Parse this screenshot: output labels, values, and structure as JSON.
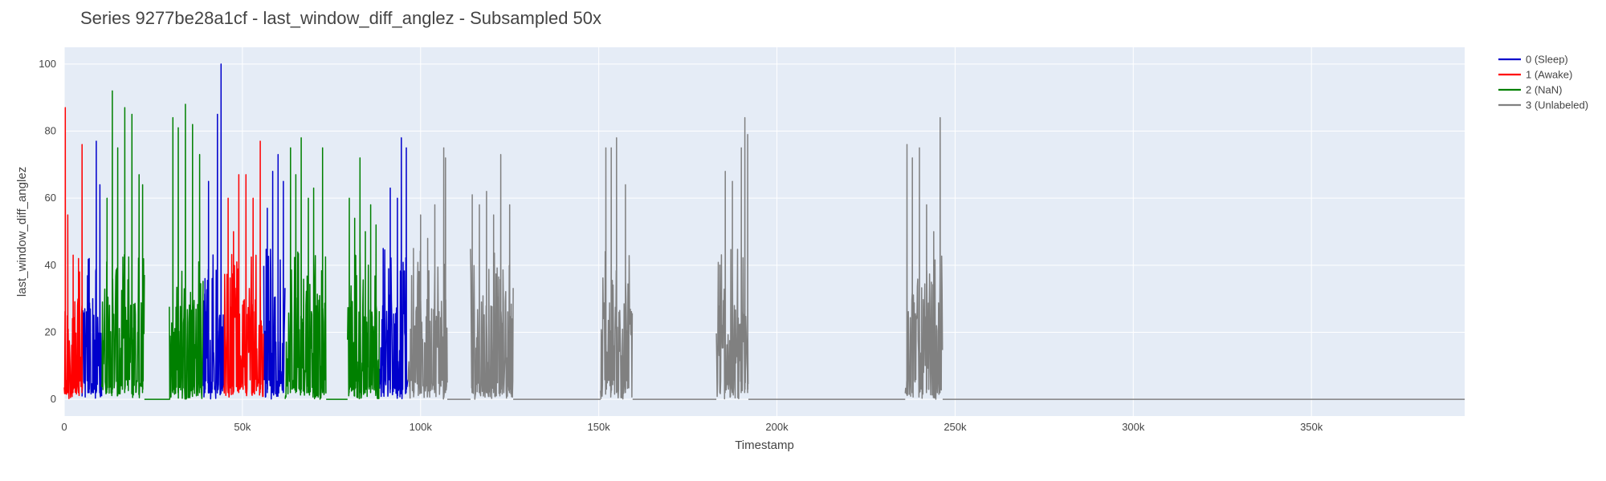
{
  "chart_data": {
    "type": "line",
    "title": "Series 9277be28a1cf - last_window_diff_anglez - Subsampled 50x",
    "xlabel": "Timestamp",
    "ylabel": "last_window_diff_anglez",
    "xlim": [
      0,
      393000
    ],
    "ylim": [
      -5,
      105
    ],
    "x_ticks": [
      0,
      50000,
      100000,
      150000,
      200000,
      250000,
      300000,
      350000
    ],
    "x_tick_labels": [
      "0",
      "50k",
      "100k",
      "150k",
      "200k",
      "250k",
      "300k",
      "350k"
    ],
    "y_ticks": [
      0,
      20,
      40,
      60,
      80,
      100
    ],
    "y_tick_labels": [
      "0",
      "20",
      "40",
      "60",
      "80",
      "100"
    ],
    "grid": true,
    "legend_position": "top-right",
    "colors": {
      "plot_bg": "#e5ecf6",
      "grid": "#ffffff",
      "sleep": "#0000cc",
      "awake": "#ff0000",
      "nan": "#008000",
      "unlabeled": "#808080"
    },
    "series": [
      {
        "name": "0 (Sleep)",
        "color": "#0000cc",
        "segments": [
          {
            "x_start": 5000,
            "x_end": 10500,
            "peaks": [
              [
                7000,
                42
              ],
              [
                8000,
                30
              ],
              [
                9000,
                77
              ],
              [
                10000,
                64
              ]
            ]
          },
          {
            "x_start": 39000,
            "x_end": 44800,
            "peaks": [
              [
                39500,
                36
              ],
              [
                40500,
                65
              ],
              [
                41500,
                36
              ],
              [
                43000,
                85
              ],
              [
                44000,
                100
              ]
            ]
          },
          {
            "x_start": 56000,
            "x_end": 62000,
            "peaks": [
              [
                57000,
                57
              ],
              [
                58500,
                68
              ],
              [
                60000,
                73
              ],
              [
                61500,
                65
              ]
            ]
          },
          {
            "x_start": 88500,
            "x_end": 96500,
            "peaks": [
              [
                89500,
                45
              ],
              [
                91500,
                63
              ],
              [
                93500,
                60
              ],
              [
                94600,
                78
              ],
              [
                96000,
                75
              ]
            ]
          }
        ]
      },
      {
        "name": "1 (Awake)",
        "color": "#ff0000",
        "segments": [
          {
            "x_start": 0,
            "x_end": 5000,
            "peaks": [
              [
                300,
                87
              ],
              [
                1000,
                55
              ],
              [
                2500,
                43
              ],
              [
                4000,
                42
              ],
              [
                5000,
                76
              ]
            ]
          },
          {
            "x_start": 44800,
            "x_end": 56000,
            "peaks": [
              [
                46000,
                60
              ],
              [
                47500,
                50
              ],
              [
                49000,
                67
              ],
              [
                51000,
                67
              ],
              [
                53000,
                60
              ],
              [
                55000,
                77
              ]
            ]
          }
        ]
      },
      {
        "name": "2 (NaN)",
        "color": "#008000",
        "segments": [
          {
            "x_start": 10500,
            "x_end": 22500,
            "peaks": [
              [
                12000,
                60
              ],
              [
                13500,
                92
              ],
              [
                15000,
                75
              ],
              [
                17000,
                87
              ],
              [
                19000,
                85
              ],
              [
                21000,
                67
              ],
              [
                22000,
                64
              ]
            ]
          },
          {
            "x_start": 22500,
            "x_end": 29500,
            "flat": 0
          },
          {
            "x_start": 29500,
            "x_end": 39000,
            "peaks": [
              [
                30500,
                84
              ],
              [
                32000,
                81
              ],
              [
                34000,
                88
              ],
              [
                36000,
                82
              ],
              [
                38000,
                73
              ]
            ]
          },
          {
            "x_start": 62000,
            "x_end": 73500,
            "peaks": [
              [
                63500,
                75
              ],
              [
                65000,
                67
              ],
              [
                66500,
                78
              ],
              [
                68500,
                60
              ],
              [
                70000,
                63
              ],
              [
                72500,
                75
              ]
            ]
          },
          {
            "x_start": 73500,
            "x_end": 79500,
            "flat": 0
          },
          {
            "x_start": 79500,
            "x_end": 88500,
            "peaks": [
              [
                80000,
                60
              ],
              [
                81500,
                54
              ],
              [
                83000,
                72
              ],
              [
                84500,
                50
              ],
              [
                86000,
                58
              ],
              [
                87500,
                52
              ]
            ]
          }
        ]
      },
      {
        "name": "3 (Unlabeled)",
        "color": "#808080",
        "segments": [
          {
            "x_start": 96500,
            "x_end": 107500,
            "peaks": [
              [
                98000,
                45
              ],
              [
                100000,
                55
              ],
              [
                102000,
                48
              ],
              [
                104000,
                58
              ],
              [
                106500,
                75
              ],
              [
                107000,
                72
              ]
            ]
          },
          {
            "x_start": 107500,
            "x_end": 114000,
            "flat": 0
          },
          {
            "x_start": 114000,
            "x_end": 126000,
            "peaks": [
              [
                114500,
                61
              ],
              [
                116500,
                58
              ],
              [
                118500,
                62
              ],
              [
                120500,
                55
              ],
              [
                122500,
                73
              ],
              [
                125000,
                58
              ]
            ]
          },
          {
            "x_start": 126000,
            "x_end": 150500,
            "flat": 0
          },
          {
            "x_start": 150500,
            "x_end": 159500,
            "peaks": [
              [
                152000,
                75
              ],
              [
                153500,
                75
              ],
              [
                155000,
                78
              ],
              [
                157500,
                64
              ]
            ]
          },
          {
            "x_start": 159500,
            "x_end": 183000,
            "flat": 0
          },
          {
            "x_start": 183000,
            "x_end": 192000,
            "peaks": [
              [
                184000,
                40
              ],
              [
                185500,
                68
              ],
              [
                187500,
                65
              ],
              [
                190000,
                75
              ],
              [
                191000,
                84
              ],
              [
                191800,
                79
              ]
            ]
          },
          {
            "x_start": 192000,
            "x_end": 236000,
            "flat": 0
          },
          {
            "x_start": 236000,
            "x_end": 246500,
            "peaks": [
              [
                236500,
                76
              ],
              [
                238000,
                72
              ],
              [
                240000,
                75
              ],
              [
                242000,
                58
              ],
              [
                244000,
                50
              ],
              [
                245800,
                84
              ]
            ]
          },
          {
            "x_start": 246500,
            "x_end": 393000,
            "flat": 0
          }
        ]
      }
    ]
  }
}
